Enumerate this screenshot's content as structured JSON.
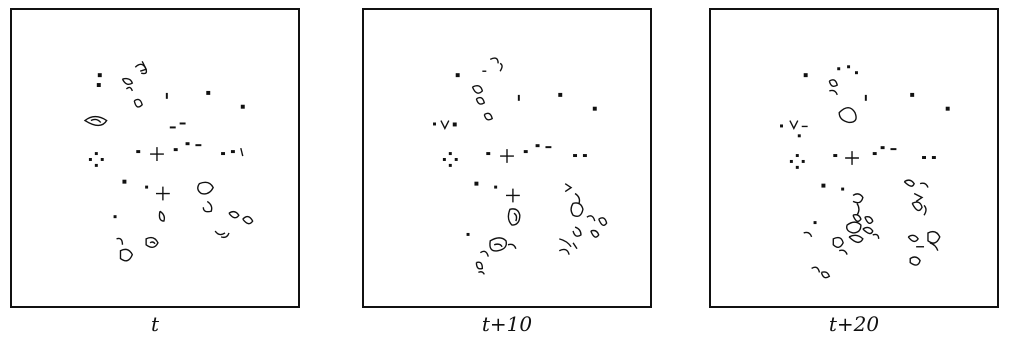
{
  "figure": {
    "panels": [
      {
        "caption": "t"
      },
      {
        "caption": "t+10"
      },
      {
        "caption": "t+20"
      }
    ]
  }
}
